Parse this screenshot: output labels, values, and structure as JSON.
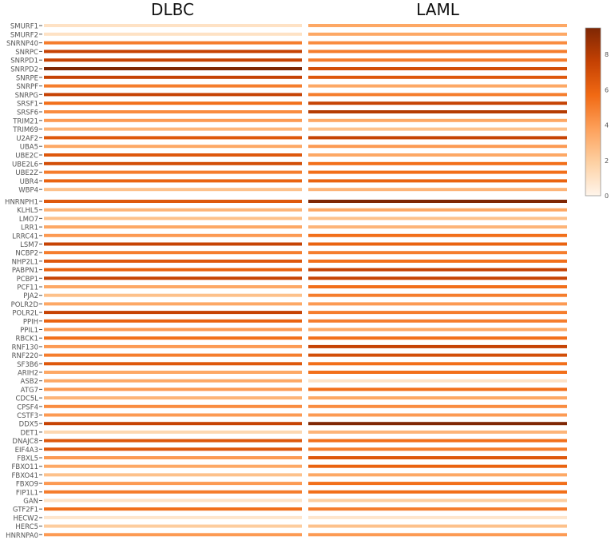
{
  "chart_data": {
    "type": "heatmap",
    "columns": [
      "DLBC",
      "LAML"
    ],
    "rows": [
      "SMURF1",
      "SMURF2",
      "SNRNP40",
      "SNRPC",
      "SNRPD1",
      "SNRPD2",
      "SNRPE",
      "SNRPF",
      "SNRPG",
      "SRSF1",
      "SRSF6",
      "TRIM21",
      "TRIM69",
      "U2AF2",
      "UBA5",
      "UBE2C",
      "UBE2L6",
      "UBE2Z",
      "UBR4",
      "WBP4",
      "HNRNPH1",
      "KLHL5",
      "LMO7",
      "LRR1",
      "LRRC41",
      "LSM7",
      "NCBP2",
      "NHP2L1",
      "PABPN1",
      "PCBP1",
      "PCF11",
      "PJA2",
      "POLR2D",
      "POLR2L",
      "PPIH",
      "PPIL1",
      "RBCK1",
      "RNF130",
      "RNF220",
      "SF3B6",
      "ARIH2",
      "ASB2",
      "ATG7",
      "CDC5L",
      "CPSF4",
      "CSTF3",
      "DDX5",
      "DET1",
      "DNAJC8",
      "EIF4A3",
      "FBXL5",
      "FBXO11",
      "FBXO41",
      "FBXO9",
      "FIP1L1",
      "GAN",
      "GTF2F1",
      "HECW2",
      "HERC5",
      "HNRNPA0"
    ],
    "values": [
      [
        1,
        3.5
      ],
      [
        1,
        3.5
      ],
      [
        5,
        4.5
      ],
      [
        7.5,
        5
      ],
      [
        7.5,
        5
      ],
      [
        9.5,
        7
      ],
      [
        7.5,
        6.5
      ],
      [
        5,
        3.5
      ],
      [
        7.5,
        5
      ],
      [
        5.5,
        7.5
      ],
      [
        4.5,
        8
      ],
      [
        4,
        3.5
      ],
      [
        3,
        2.5
      ],
      [
        6.5,
        7.5
      ],
      [
        3.5,
        4
      ],
      [
        6.5,
        3.5
      ],
      [
        7,
        5.5
      ],
      [
        5,
        5.5
      ],
      [
        6,
        6
      ],
      [
        2.5,
        3
      ],
      [
        6.5,
        9.5
      ],
      [
        3,
        3.5
      ],
      [
        2.5,
        2.5
      ],
      [
        3.5,
        3
      ],
      [
        4,
        5.5
      ],
      [
        7.5,
        6
      ],
      [
        5,
        5
      ],
      [
        6.5,
        5.5
      ],
      [
        6,
        7.5
      ],
      [
        7.5,
        7.5
      ],
      [
        3.5,
        5.5
      ],
      [
        2.5,
        5
      ],
      [
        3.5,
        4
      ],
      [
        7.5,
        5
      ],
      [
        6,
        5
      ],
      [
        4,
        3.5
      ],
      [
        5.5,
        5.5
      ],
      [
        4,
        7.5
      ],
      [
        5,
        7
      ],
      [
        6.5,
        5.5
      ],
      [
        3.5,
        5.5
      ],
      [
        3.5,
        1
      ],
      [
        4,
        5.5
      ],
      [
        3,
        3.5
      ],
      [
        4.5,
        4.5
      ],
      [
        4,
        4
      ],
      [
        7.5,
        9.5
      ],
      [
        1.5,
        3
      ],
      [
        6.5,
        5.5
      ],
      [
        6.5,
        5
      ],
      [
        4,
        6.5
      ],
      [
        3.5,
        6
      ],
      [
        2.5,
        3.5
      ],
      [
        4,
        5.5
      ],
      [
        5,
        5.5
      ],
      [
        1,
        2
      ],
      [
        5.5,
        5
      ],
      [
        0.8,
        0.8
      ],
      [
        2,
        2.5
      ],
      [
        4,
        4
      ]
    ],
    "colorscale": "Oranges",
    "zlim": [
      0,
      9.5
    ],
    "colorbar_ticks": [
      "0",
      "2",
      "4",
      "6",
      "8"
    ],
    "legend": "right"
  }
}
